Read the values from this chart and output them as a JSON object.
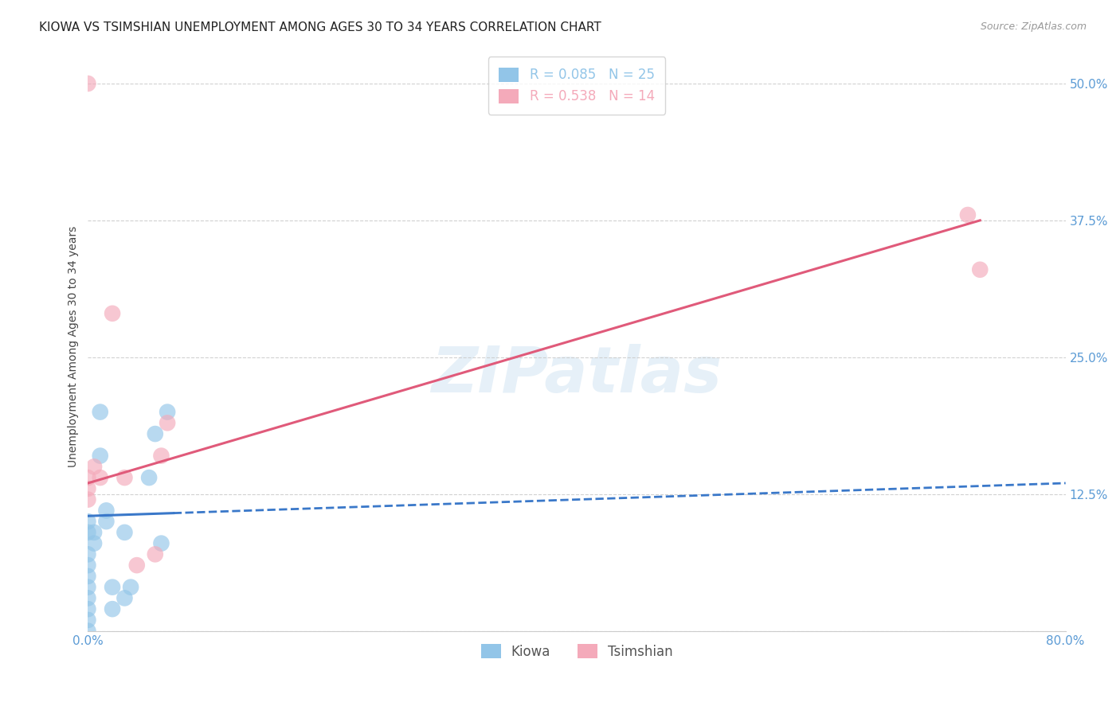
{
  "title": "KIOWA VS TSIMSHIAN UNEMPLOYMENT AMONG AGES 30 TO 34 YEARS CORRELATION CHART",
  "source": "Source: ZipAtlas.com",
  "xlabel": "",
  "ylabel": "Unemployment Among Ages 30 to 34 years",
  "xlim": [
    0.0,
    0.8
  ],
  "ylim": [
    0.0,
    0.52
  ],
  "yticks": [
    0.0,
    0.125,
    0.25,
    0.375,
    0.5
  ],
  "ytick_labels": [
    "",
    "12.5%",
    "25.0%",
    "37.5%",
    "50.0%"
  ],
  "xticks": [
    0.0,
    0.1,
    0.2,
    0.3,
    0.4,
    0.5,
    0.6,
    0.7,
    0.8
  ],
  "xtick_labels": [
    "0.0%",
    "",
    "",
    "",
    "",
    "",
    "",
    "",
    "80.0%"
  ],
  "kiowa_color": "#92C5E8",
  "tsimshian_color": "#F4AABA",
  "kiowa_line_color": "#3A78C9",
  "tsimshian_line_color": "#E05A7A",
  "kiowa_R": 0.085,
  "kiowa_N": 25,
  "tsimshian_R": 0.538,
  "tsimshian_N": 14,
  "background_color": "#ffffff",
  "grid_color": "#cccccc",
  "axis_color": "#5b9bd5",
  "kiowa_x": [
    0.0,
    0.0,
    0.0,
    0.0,
    0.0,
    0.0,
    0.0,
    0.0,
    0.0,
    0.0,
    0.005,
    0.005,
    0.01,
    0.01,
    0.015,
    0.015,
    0.02,
    0.02,
    0.03,
    0.03,
    0.035,
    0.05,
    0.055,
    0.06,
    0.065
  ],
  "kiowa_y": [
    0.0,
    0.01,
    0.02,
    0.03,
    0.04,
    0.05,
    0.06,
    0.07,
    0.09,
    0.1,
    0.08,
    0.09,
    0.16,
    0.2,
    0.1,
    0.11,
    0.04,
    0.02,
    0.03,
    0.09,
    0.04,
    0.14,
    0.18,
    0.08,
    0.2
  ],
  "tsimshian_x": [
    0.0,
    0.0,
    0.0,
    0.0,
    0.005,
    0.01,
    0.02,
    0.03,
    0.04,
    0.055,
    0.06,
    0.065,
    0.72,
    0.73
  ],
  "tsimshian_y": [
    0.12,
    0.13,
    0.14,
    0.5,
    0.15,
    0.14,
    0.29,
    0.14,
    0.06,
    0.07,
    0.16,
    0.19,
    0.38,
    0.33
  ],
  "kiowa_trend": [
    0.0,
    0.8,
    0.105,
    0.135
  ],
  "tsimshian_trend": [
    0.0,
    0.73,
    0.135,
    0.375
  ],
  "title_fontsize": 11,
  "label_fontsize": 10,
  "tick_fontsize": 11,
  "legend_fontsize": 12
}
